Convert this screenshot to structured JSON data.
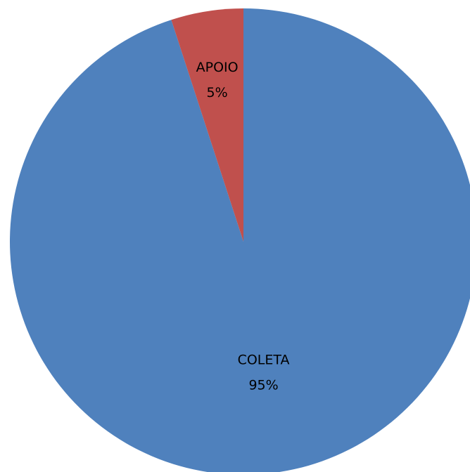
{
  "chart_data": {
    "type": "pie",
    "title": "",
    "slices": [
      {
        "label": "COLETA",
        "value": 95,
        "percent_label": "95%",
        "color": "#4F81BD"
      },
      {
        "label": "APOIO",
        "value": 5,
        "percent_label": "5%",
        "color": "#C0504D"
      }
    ],
    "start_angle_deg": -90,
    "direction": "clockwise",
    "legend": "none",
    "data_labels": "inside"
  }
}
